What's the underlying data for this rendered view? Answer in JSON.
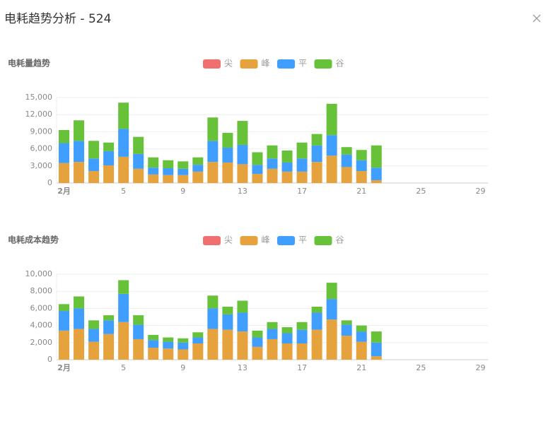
{
  "title": "电耗趋势分析 - 524",
  "chart_data": [
    {
      "type": "bar",
      "title": "电耗量趋势",
      "stacked": true,
      "grid": true,
      "categories": [
        "2月",
        null,
        null,
        null,
        "5",
        null,
        null,
        null,
        "9",
        null,
        null,
        null,
        "13",
        null,
        null,
        null,
        "17",
        null,
        null,
        null,
        "21",
        null,
        null,
        null,
        "25",
        null,
        null,
        null,
        "29"
      ],
      "ylim": [
        0,
        15000
      ],
      "yticks": [
        0,
        {
          "value": 3000,
          "label": "3,000"
        },
        {
          "value": 6000,
          "label": "6,000"
        },
        {
          "value": 9000,
          "label": "9,000"
        },
        {
          "value": 12000,
          "label": "12,000"
        },
        {
          "value": 15000,
          "label": "15,000"
        }
      ],
      "series": [
        {
          "name": "尖",
          "color": "#f07070",
          "values": [
            0,
            0,
            0,
            0,
            0,
            0,
            0,
            0,
            0,
            0,
            0,
            0,
            0,
            0,
            0,
            0,
            0,
            0,
            0,
            0,
            0,
            0,
            null,
            null,
            null,
            null,
            null,
            null,
            null
          ]
        },
        {
          "name": "峰",
          "color": "#e6a23c",
          "values": [
            3500,
            3700,
            2100,
            3100,
            4600,
            2500,
            1500,
            1400,
            1400,
            2000,
            3700,
            3600,
            3300,
            1600,
            2500,
            2000,
            2000,
            3700,
            4800,
            2800,
            2100,
            500,
            null,
            null,
            null,
            null,
            null,
            null,
            null
          ]
        },
        {
          "name": "平",
          "color": "#409eff",
          "values": [
            3500,
            3700,
            2200,
            2500,
            4900,
            2600,
            1200,
            1200,
            1100,
            1200,
            3700,
            2600,
            3400,
            1600,
            1800,
            1600,
            2300,
            2900,
            3600,
            2200,
            1900,
            2200,
            null,
            null,
            null,
            null,
            null,
            null,
            null
          ]
        },
        {
          "name": "谷",
          "color": "#67c23a",
          "values": [
            2300,
            3600,
            3100,
            1500,
            4600,
            3000,
            1800,
            1400,
            1300,
            1300,
            4100,
            2600,
            4200,
            2200,
            2300,
            2100,
            2800,
            2000,
            5500,
            1300,
            1800,
            3900,
            null,
            null,
            null,
            null,
            null,
            null,
            null
          ]
        }
      ]
    },
    {
      "type": "bar",
      "title": "电耗成本趋势",
      "stacked": true,
      "grid": true,
      "categories": [
        "2月",
        null,
        null,
        null,
        "5",
        null,
        null,
        null,
        "9",
        null,
        null,
        null,
        "13",
        null,
        null,
        null,
        "17",
        null,
        null,
        null,
        "21",
        null,
        null,
        null,
        "25",
        null,
        null,
        null,
        "29"
      ],
      "ylim": [
        0,
        10000
      ],
      "yticks": [
        0,
        {
          "value": 2000,
          "label": "2,000"
        },
        {
          "value": 4000,
          "label": "4,000"
        },
        {
          "value": 6000,
          "label": "6,000"
        },
        {
          "value": 8000,
          "label": "8,000"
        },
        {
          "value": 10000,
          "label": "10,000"
        }
      ],
      "series": [
        {
          "name": "尖",
          "color": "#f07070",
          "values": [
            0,
            0,
            0,
            0,
            0,
            0,
            0,
            0,
            0,
            0,
            0,
            0,
            0,
            0,
            0,
            0,
            0,
            0,
            0,
            0,
            0,
            0,
            null,
            null,
            null,
            null,
            null,
            null,
            null
          ]
        },
        {
          "name": "峰",
          "color": "#e6a23c",
          "values": [
            3400,
            3600,
            2100,
            3000,
            4400,
            2400,
            1400,
            1300,
            1200,
            1900,
            3600,
            3500,
            3300,
            1500,
            2400,
            1900,
            1900,
            3500,
            4700,
            2800,
            2100,
            400,
            null,
            null,
            null,
            null,
            null,
            null,
            null
          ]
        },
        {
          "name": "平",
          "color": "#409eff",
          "values": [
            2300,
            2400,
            1500,
            1600,
            3300,
            1700,
            900,
            800,
            800,
            700,
            2400,
            1800,
            2200,
            1100,
            1200,
            1200,
            1600,
            2000,
            2400,
            1300,
            1200,
            1600,
            null,
            null,
            null,
            null,
            null,
            null,
            null
          ]
        },
        {
          "name": "谷",
          "color": "#67c23a",
          "values": [
            800,
            1400,
            1000,
            600,
            1600,
            1100,
            600,
            500,
            500,
            600,
            1500,
            900,
            1400,
            800,
            800,
            700,
            900,
            700,
            1900,
            500,
            700,
            1300,
            null,
            null,
            null,
            null,
            null,
            null,
            null
          ]
        }
      ]
    }
  ]
}
